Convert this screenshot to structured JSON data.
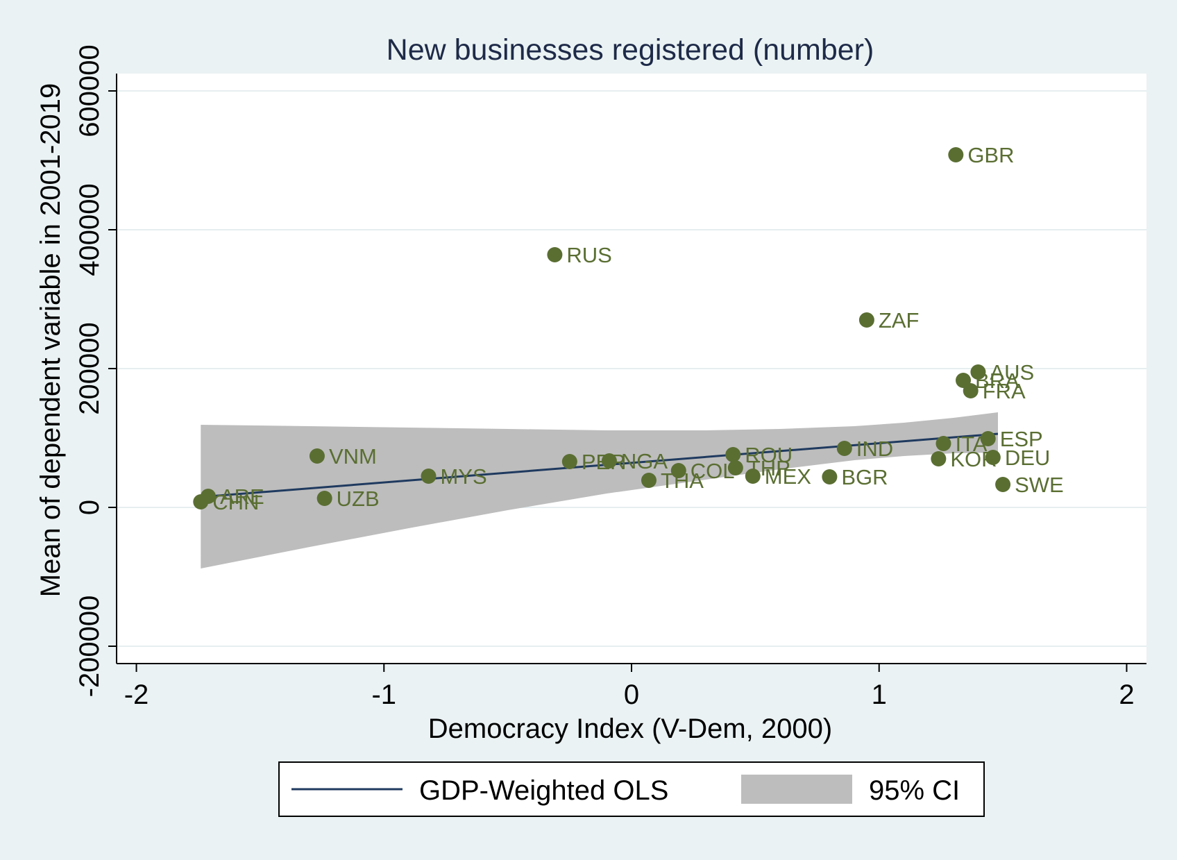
{
  "chart_data": {
    "type": "scatter",
    "title": "New businesses registered (number)",
    "xlabel": "Democracy Index (V-Dem, 2000)",
    "ylabel": "Mean of dependent variable in 2001-2019",
    "xlim": [
      -2.08,
      2.08
    ],
    "ylim": [
      -225000,
      625000
    ],
    "xticks": [
      -2,
      -1,
      0,
      1,
      2
    ],
    "xtick_labels": [
      "-2",
      "-1",
      "0",
      "1",
      "2"
    ],
    "yticks": [
      -200000,
      0,
      200000,
      400000,
      600000
    ],
    "ytick_labels": [
      "-200000",
      "0",
      "200000",
      "400000",
      "600000"
    ],
    "grid": true,
    "marker_color": "#5a6e32",
    "fit_color": "#1f3a5f",
    "ci_color": "#bdbdbd",
    "points": [
      {
        "label": "GBR",
        "x": 1.31,
        "y": 508000
      },
      {
        "label": "RUS",
        "x": -0.31,
        "y": 364000
      },
      {
        "label": "ZAF",
        "x": 0.95,
        "y": 270000
      },
      {
        "label": "AUS",
        "x": 1.4,
        "y": 195000
      },
      {
        "label": "BRA",
        "x": 1.34,
        "y": 183000
      },
      {
        "label": "FRA",
        "x": 1.37,
        "y": 168000
      },
      {
        "label": "ESP",
        "x": 1.44,
        "y": 99000
      },
      {
        "label": "ITA",
        "x": 1.26,
        "y": 92000
      },
      {
        "label": "IND",
        "x": 0.86,
        "y": 85000
      },
      {
        "label": "ROU",
        "x": 0.41,
        "y": 76000
      },
      {
        "label": "VNM",
        "x": -1.27,
        "y": 74000
      },
      {
        "label": "DEU",
        "x": 1.46,
        "y": 72000
      },
      {
        "label": "KOR",
        "x": 1.24,
        "y": 70000
      },
      {
        "label": "PER",
        "x": -0.25,
        "y": 66000
      },
      {
        "label": "NGA",
        "x": -0.09,
        "y": 67000
      },
      {
        "label": "THP",
        "x": 0.42,
        "y": 57000
      },
      {
        "label": "COL",
        "x": 0.19,
        "y": 53000
      },
      {
        "label": "MYS",
        "x": -0.82,
        "y": 45000
      },
      {
        "label": "MEX",
        "x": 0.49,
        "y": 45000
      },
      {
        "label": "BGR",
        "x": 0.8,
        "y": 44000
      },
      {
        "label": "THA",
        "x": 0.07,
        "y": 39000
      },
      {
        "label": "SWE",
        "x": 1.5,
        "y": 33000
      },
      {
        "label": "ARE",
        "x": -1.71,
        "y": 16000
      },
      {
        "label": "UZB",
        "x": -1.24,
        "y": 13000
      },
      {
        "label": "CHN",
        "x": -1.74,
        "y": 8000
      }
    ],
    "fit_line": {
      "x": [
        -1.74,
        1.48
      ],
      "y": [
        15000,
        106000
      ]
    },
    "ci_band": {
      "x": [
        -1.74,
        -1.3,
        -0.9,
        -0.5,
        -0.1,
        0.3,
        0.6,
        0.9,
        1.1,
        1.3,
        1.48
      ],
      "upper": [
        119000,
        117000,
        115000,
        113000,
        111000,
        111000,
        113000,
        117000,
        122000,
        129000,
        137000
      ],
      "lower": [
        -88000,
        -57000,
        -30000,
        -4000,
        20000,
        40000,
        55000,
        68000,
        74000,
        78000,
        79000
      ]
    }
  },
  "legend": {
    "items": [
      {
        "label": "GDP-Weighted OLS",
        "color": "#1f3a5f"
      },
      {
        "label": "95% CI",
        "color": "#bdbdbd"
      }
    ]
  }
}
